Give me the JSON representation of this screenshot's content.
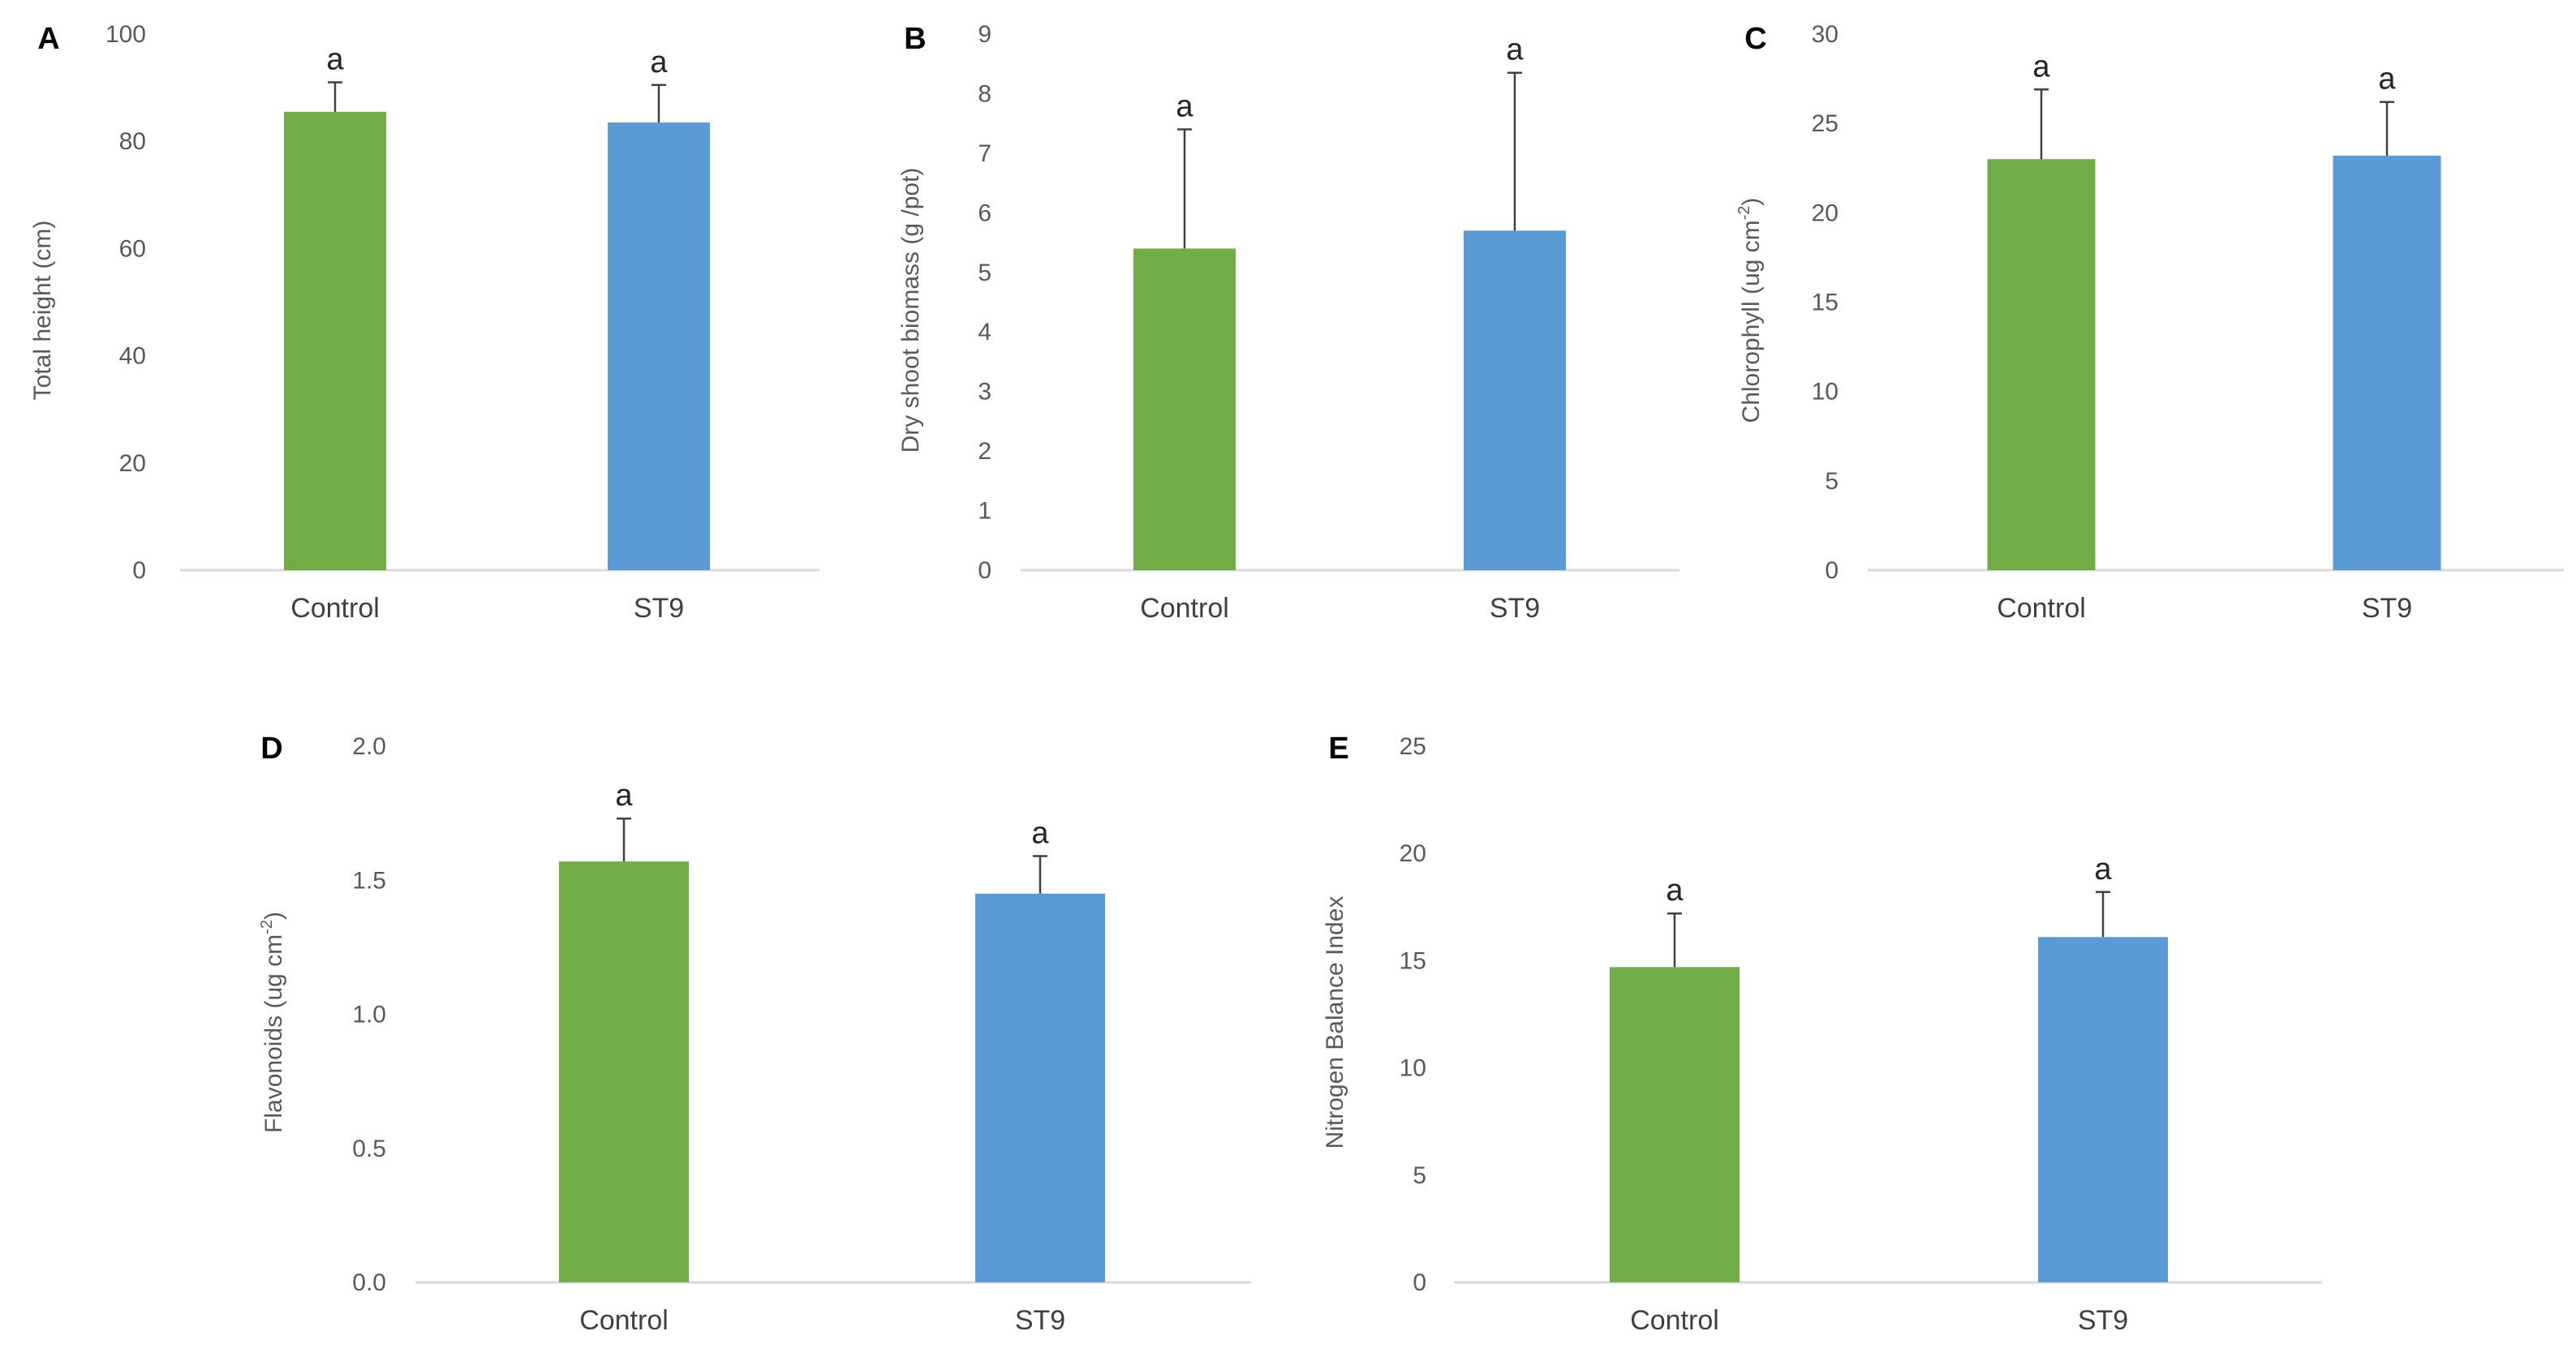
{
  "colors": {
    "control": "#70ad47",
    "treatment": "#5b9bd5",
    "axis": "#d9d9d9",
    "error": "#404040"
  },
  "chart_data": [
    {
      "panel": "A",
      "type": "bar",
      "categories": [
        "Control",
        "ST9"
      ],
      "values": [
        85.5,
        83.5
      ],
      "errors": [
        5.5,
        7
      ],
      "labels": [
        "a",
        "a"
      ],
      "ylabel": "Total height (cm)",
      "ylim": [
        0,
        100
      ],
      "ticks": [
        "0",
        "20",
        "40",
        "60",
        "80",
        "100"
      ]
    },
    {
      "panel": "B",
      "type": "bar",
      "categories": [
        "Control",
        "ST9"
      ],
      "values": [
        5.4,
        5.7
      ],
      "errors": [
        2.0,
        2.65
      ],
      "labels": [
        "a",
        "a"
      ],
      "ylabel": "Dry shoot biomass (g /pot)",
      "ylim": [
        0,
        9
      ],
      "ticks": [
        "0",
        "1",
        "2",
        "3",
        "4",
        "5",
        "6",
        "7",
        "8",
        "9"
      ]
    },
    {
      "panel": "C",
      "type": "bar",
      "categories": [
        "Control",
        "ST9"
      ],
      "values": [
        23,
        23.2
      ],
      "errors": [
        3.9,
        3.0
      ],
      "labels": [
        "a",
        "a"
      ],
      "ylabel": "Chlorophyll (ug cm",
      "ylabel_sup": "-2",
      "ylabel_end": ")",
      "ylim": [
        0,
        30
      ],
      "ticks": [
        "0",
        "5",
        "10",
        "15",
        "20",
        "25",
        "30"
      ]
    },
    {
      "panel": "D",
      "type": "bar",
      "categories": [
        "Control",
        "ST9"
      ],
      "values": [
        1.57,
        1.45
      ],
      "errors": [
        0.16,
        0.14
      ],
      "labels": [
        "a",
        "a"
      ],
      "ylabel": "Flavonoids (ug cm",
      "ylabel_sup": "-2",
      "ylabel_end": ")",
      "ylim": [
        0,
        2
      ],
      "ticks": [
        "0.0",
        "0.5",
        "1.0",
        "1.5",
        "2.0"
      ]
    },
    {
      "panel": "E",
      "type": "bar",
      "categories": [
        "Control",
        "ST9"
      ],
      "values": [
        14.7,
        16.1
      ],
      "errors": [
        2.5,
        2.1
      ],
      "labels": [
        "a",
        "a"
      ],
      "ylabel": "Nitrogen Balance Index",
      "ylim": [
        0,
        25
      ],
      "ticks": [
        "0",
        "5",
        "10",
        "15",
        "20",
        "25"
      ]
    }
  ]
}
